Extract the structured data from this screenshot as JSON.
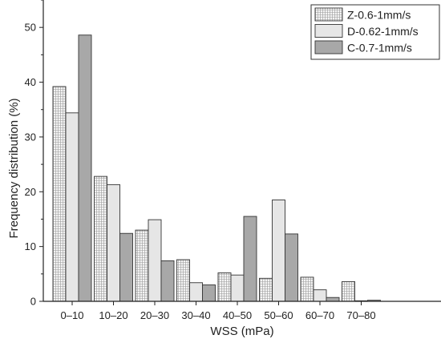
{
  "chart_data": {
    "type": "bar",
    "xlabel": "WSS (mPa)",
    "ylabel": "Frequency distribution (%)",
    "ylim": [
      0,
      55
    ],
    "yticks": [
      0,
      10,
      20,
      30,
      40,
      50
    ],
    "categories": [
      "0–10",
      "10–20",
      "20–30",
      "30–40",
      "40–50",
      "50–60",
      "60–70",
      "70–80"
    ],
    "series": [
      {
        "name": "Z-0.6-1mm/s",
        "values": [
          39.2,
          22.8,
          13.0,
          7.6,
          5.2,
          4.2,
          4.4,
          3.6
        ],
        "color": "#eeeeee",
        "pattern": "grid"
      },
      {
        "name": "D-0.62-1mm/s",
        "values": [
          34.4,
          21.3,
          14.9,
          3.4,
          4.8,
          18.5,
          2.1,
          0.1
        ],
        "color": "#e6e6e6",
        "pattern": "none"
      },
      {
        "name": "C-0.7-1mm/s",
        "values": [
          48.6,
          12.4,
          7.4,
          3.0,
          15.5,
          12.3,
          0.7,
          0.2
        ],
        "color": "#a8a8a8",
        "pattern": "none"
      }
    ],
    "legend_position": "top-right",
    "grid": false
  }
}
